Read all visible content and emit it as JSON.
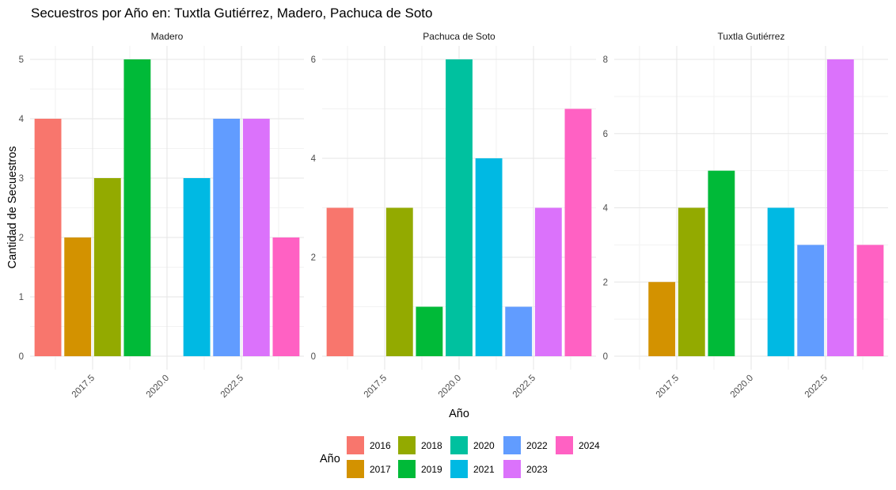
{
  "chart_data": {
    "type": "bar",
    "title": "Secuestros por Año en: Tuxtla Gutiérrez, Madero, Pachuca de Soto",
    "xlabel": "Año",
    "ylabel": "Cantidad de Secuestros",
    "xlim": [
      2015.4,
      2024.6
    ],
    "x_ticks": [
      2017.5,
      2020.0,
      2022.5
    ],
    "x_tick_labels": [
      "2017.5",
      "2020.0",
      "2022.5"
    ],
    "grid": true,
    "legend": {
      "title": "Año",
      "position": "bottom",
      "entries": [
        {
          "label": "2016",
          "year": 2016,
          "color": "#F8766D"
        },
        {
          "label": "2017",
          "year": 2017,
          "color": "#D39200"
        },
        {
          "label": "2018",
          "year": 2018,
          "color": "#93AA00"
        },
        {
          "label": "2019",
          "year": 2019,
          "color": "#00BA38"
        },
        {
          "label": "2020",
          "year": 2020,
          "color": "#00C19F"
        },
        {
          "label": "2021",
          "year": 2021,
          "color": "#00B9E3"
        },
        {
          "label": "2022",
          "year": 2022,
          "color": "#619CFF"
        },
        {
          "label": "2023",
          "year": 2023,
          "color": "#DB72FB"
        },
        {
          "label": "2024",
          "year": 2024,
          "color": "#FF61C3"
        }
      ]
    },
    "panels": [
      {
        "name": "Madero",
        "ylim": [
          0,
          5
        ],
        "y_ticks": [
          0,
          1,
          2,
          3,
          4,
          5
        ],
        "y_tick_labels": [
          "0",
          "1",
          "2",
          "3",
          "4",
          "5"
        ],
        "bars": [
          {
            "year": 2016,
            "value": 4
          },
          {
            "year": 2017,
            "value": 2
          },
          {
            "year": 2018,
            "value": 3
          },
          {
            "year": 2019,
            "value": 5
          },
          {
            "year": 2021,
            "value": 3
          },
          {
            "year": 2022,
            "value": 4
          },
          {
            "year": 2023,
            "value": 4
          },
          {
            "year": 2024,
            "value": 2
          }
        ]
      },
      {
        "name": "Pachuca de Soto",
        "ylim": [
          0,
          6
        ],
        "y_ticks": [
          0,
          2,
          4,
          6
        ],
        "y_tick_labels": [
          "0",
          "2",
          "4",
          "6"
        ],
        "bars": [
          {
            "year": 2016,
            "value": 3
          },
          {
            "year": 2018,
            "value": 3
          },
          {
            "year": 2019,
            "value": 1
          },
          {
            "year": 2020,
            "value": 6
          },
          {
            "year": 2021,
            "value": 4
          },
          {
            "year": 2022,
            "value": 1
          },
          {
            "year": 2023,
            "value": 3
          },
          {
            "year": 2024,
            "value": 5
          }
        ]
      },
      {
        "name": "Tuxtla Gutiérrez",
        "ylim": [
          0,
          8
        ],
        "y_ticks": [
          0,
          2,
          4,
          6,
          8
        ],
        "y_tick_labels": [
          "0",
          "2",
          "4",
          "6",
          "8"
        ],
        "bars": [
          {
            "year": 2017,
            "value": 2
          },
          {
            "year": 2018,
            "value": 4
          },
          {
            "year": 2019,
            "value": 5
          },
          {
            "year": 2021,
            "value": 4
          },
          {
            "year": 2022,
            "value": 3
          },
          {
            "year": 2023,
            "value": 8
          },
          {
            "year": 2024,
            "value": 3
          }
        ]
      }
    ]
  }
}
